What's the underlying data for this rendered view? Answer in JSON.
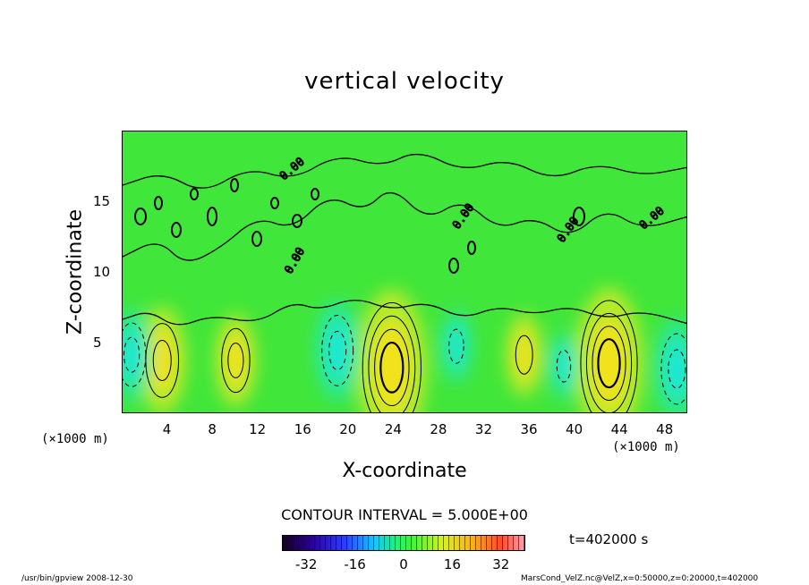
{
  "chart_data": {
    "type": "heatmap",
    "title": "vertical velocity",
    "xlabel": "X-coordinate",
    "ylabel": "Z-coordinate",
    "x_unit": "(×1000 m)",
    "xlim": [
      0,
      50
    ],
    "ylim": [
      0,
      20
    ],
    "x_ticks": [
      4,
      8,
      12,
      16,
      20,
      24,
      28,
      32,
      36,
      40,
      44,
      48
    ],
    "y_ticks": [
      5,
      10,
      15
    ],
    "contour_interval": "CONTOUR INTERVAL = 5.000E+00",
    "colorbar_ticks": [
      -32,
      -16,
      0,
      16,
      32
    ],
    "colorbar_range": [
      -40,
      40
    ],
    "time_label": "t=402000 s",
    "contour_label": "0.00",
    "features": [
      {
        "x": 23.8,
        "z": 3.3,
        "value": 22,
        "sign": "updraft"
      },
      {
        "x": 43.0,
        "z": 3.6,
        "value": 21,
        "sign": "updraft"
      },
      {
        "x": 3.5,
        "z": 3.8,
        "value": 12,
        "sign": "updraft"
      },
      {
        "x": 10.0,
        "z": 3.8,
        "value": 9,
        "sign": "updraft"
      },
      {
        "x": 35.5,
        "z": 4.2,
        "value": 7,
        "sign": "updraft"
      },
      {
        "x": 19.0,
        "z": 4.5,
        "value": -11,
        "sign": "downdraft"
      },
      {
        "x": 0.8,
        "z": 4.2,
        "value": -9,
        "sign": "downdraft"
      },
      {
        "x": 49.0,
        "z": 3.2,
        "value": -11,
        "sign": "downdraft"
      },
      {
        "x": 29.5,
        "z": 4.8,
        "value": -5,
        "sign": "downdraft"
      },
      {
        "x": 39.0,
        "z": 3.4,
        "value": -4,
        "sign": "downdraft"
      }
    ]
  },
  "colors": {
    "background_field": "#41e63a",
    "updraft_core": "#f2e21e",
    "updraft_outer": "#b6ea2a",
    "downdraft_core": "#1ee8d6",
    "downdraft_outer": "#2be890"
  },
  "footer": {
    "left": "/usr/bin/gpview   2008-12-30",
    "right": "MarsCond_VelZ.nc@VelZ,x=0:50000,z=0:20000,t=402000"
  }
}
